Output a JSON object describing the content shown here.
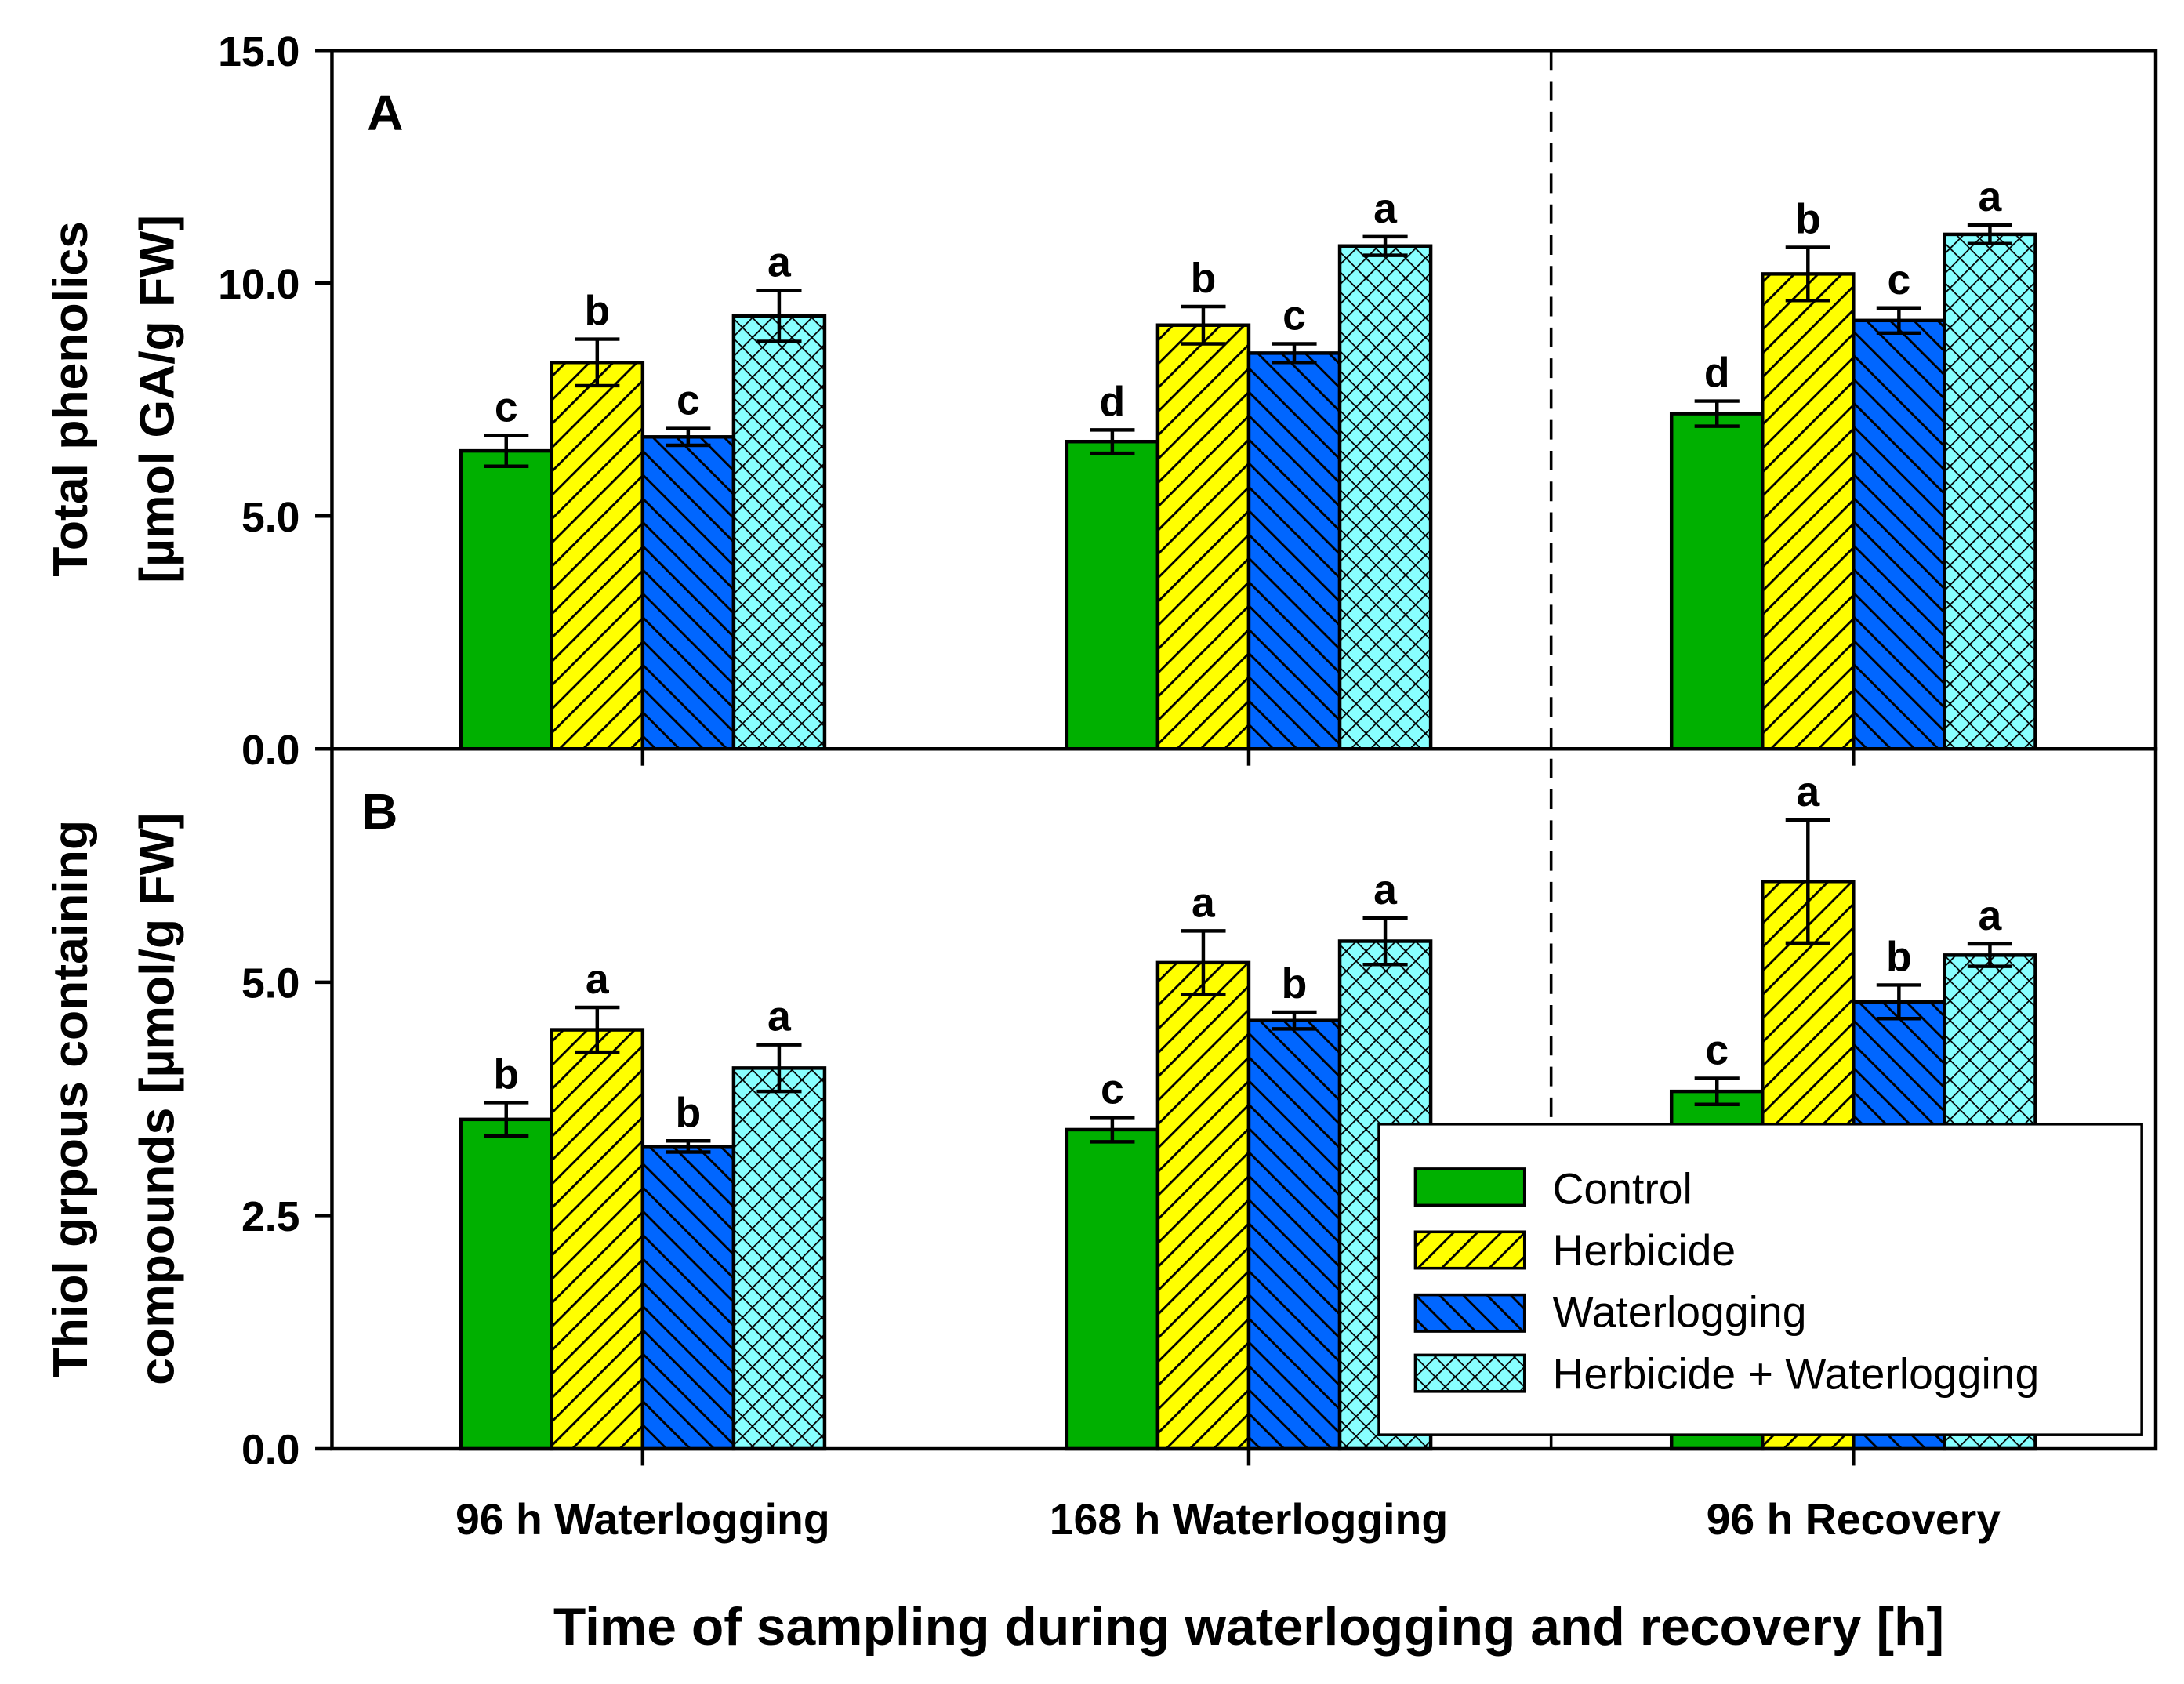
{
  "chart_data": [
    {
      "type": "bar",
      "panel_label": "A",
      "ylabel_line1": "Total phenolics",
      "ylabel_line2": "[µmol GA/g FW]",
      "ylim": [
        0,
        15
      ],
      "yticks": [
        "0.0",
        "5.0",
        "10.0",
        "15.0"
      ],
      "ytick_values": [
        0,
        5,
        10,
        15
      ],
      "categories": [
        "96 h Waterlogging",
        "168 h Waterlogging",
        "96 h Recovery"
      ],
      "series": [
        {
          "name": "Control",
          "values": [
            6.4,
            6.6,
            7.2
          ],
          "errors": [
            0.33,
            0.25,
            0.27
          ],
          "letters": [
            "c",
            "d",
            "d"
          ]
        },
        {
          "name": "Herbicide",
          "values": [
            8.3,
            9.1,
            10.2
          ],
          "errors": [
            0.5,
            0.4,
            0.57
          ],
          "letters": [
            "b",
            "b",
            "b"
          ]
        },
        {
          "name": "Waterlogging",
          "values": [
            6.7,
            8.5,
            9.2
          ],
          "errors": [
            0.18,
            0.2,
            0.27
          ],
          "letters": [
            "c",
            "c",
            "c"
          ]
        },
        {
          "name": "Herbicide + Waterlogging",
          "values": [
            9.3,
            10.8,
            11.05
          ],
          "errors": [
            0.55,
            0.2,
            0.2
          ],
          "letters": [
            "a",
            "a",
            "a"
          ]
        }
      ]
    },
    {
      "type": "bar",
      "panel_label": "B",
      "ylabel_line1": "Thiol grpous containing",
      "ylabel_line2": "compounds [µmol/g FW]",
      "ylim": [
        0,
        7.5
      ],
      "yticks": [
        "0.0",
        "2.5",
        "5.0"
      ],
      "ytick_values": [
        0,
        2.5,
        5
      ],
      "categories": [
        "96 h Waterlogging",
        "168 h Waterlogging",
        "96 h Recovery"
      ],
      "series": [
        {
          "name": "Control",
          "values": [
            3.53,
            3.42,
            3.83
          ],
          "errors": [
            0.18,
            0.13,
            0.14
          ],
          "letters": [
            "b",
            "c",
            "c"
          ]
        },
        {
          "name": "Herbicide",
          "values": [
            4.49,
            5.21,
            6.08
          ],
          "errors": [
            0.24,
            0.34,
            0.66
          ],
          "letters": [
            "a",
            "a",
            "a"
          ]
        },
        {
          "name": "Waterlogging",
          "values": [
            3.24,
            4.59,
            4.79
          ],
          "errors": [
            0.06,
            0.09,
            0.18
          ],
          "letters": [
            "b",
            "b",
            "b"
          ]
        },
        {
          "name": "Herbicide + Waterlogging",
          "values": [
            4.08,
            5.44,
            5.29
          ],
          "errors": [
            0.25,
            0.25,
            0.12
          ],
          "letters": [
            "a",
            "a",
            "a"
          ]
        }
      ]
    }
  ],
  "xlabel": "Time of sampling during waterlogging and recovery [h]",
  "legend": {
    "placement": "bottom-right of panel B",
    "entries": [
      "Control",
      "Herbicide",
      "Waterlogging",
      "Herbicide + Waterlogging"
    ]
  },
  "colors": {
    "Control": "#00b000",
    "Herbicide": "#ffff00",
    "Waterlogging": "#0066ff",
    "Herbicide + Waterlogging": "#88ffff"
  }
}
